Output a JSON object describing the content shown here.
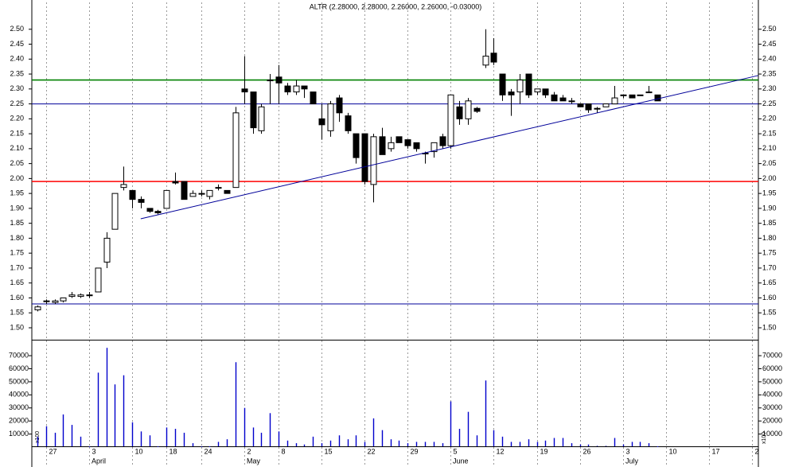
{
  "chart_data": {
    "type": "candlestick",
    "title": "ALTR (2.28000, 2.28000, 2.26000, 2.26000, -0.03000)",
    "categories": [
      null,
      "27",
      null,
      null,
      null,
      null,
      "3",
      null,
      null,
      null,
      null,
      "10",
      null,
      null,
      null,
      "18",
      null,
      null,
      null,
      "24",
      null,
      null,
      null,
      null,
      "2",
      null,
      null,
      null,
      "8",
      null,
      null,
      null,
      null,
      "15",
      null,
      null,
      null,
      null,
      "22",
      null,
      null,
      null,
      null,
      "29",
      null,
      null,
      null,
      null,
      "5",
      null,
      null,
      null,
      null,
      "12",
      null,
      null,
      null,
      null,
      "19",
      null,
      null,
      null,
      null,
      "26",
      null,
      null,
      null,
      null,
      "3",
      null,
      null,
      null,
      null,
      "10",
      null,
      null,
      null,
      null,
      "17",
      null,
      null,
      null,
      null,
      "2"
    ],
    "months": [
      null,
      null,
      null,
      null,
      null,
      null,
      "April",
      null,
      null,
      null,
      null,
      null,
      null,
      null,
      null,
      null,
      null,
      null,
      null,
      null,
      null,
      null,
      null,
      null,
      "May",
      null,
      null,
      null,
      null,
      null,
      null,
      null,
      null,
      null,
      null,
      null,
      null,
      null,
      null,
      null,
      null,
      null,
      null,
      null,
      null,
      null,
      null,
      null,
      "June",
      null,
      null,
      null,
      null,
      null,
      null,
      null,
      null,
      null,
      null,
      null,
      null,
      null,
      null,
      null,
      null,
      null,
      null,
      null,
      "July",
      null,
      null,
      null,
      null,
      null,
      null,
      null,
      null,
      null,
      null,
      null,
      null,
      null,
      null,
      null
    ],
    "open": [
      1.56,
      1.59,
      1.585,
      1.59,
      1.605,
      1.605,
      1.61,
      1.62,
      1.72,
      1.83,
      1.97,
      1.96,
      1.93,
      1.9,
      1.89,
      1.9,
      1.99,
      1.99,
      1.94,
      1.95,
      1.94,
      1.97,
      1.96,
      1.97,
      2.3,
      2.29,
      2.16,
      2.33,
      2.34,
      2.31,
      2.29,
      2.31,
      2.29,
      2.2,
      2.16,
      2.27,
      2.21,
      2.15,
      2.15,
      1.98,
      2.14,
      2.1,
      2.14,
      2.13,
      2.12,
      2.085,
      2.09,
      2.14,
      2.11,
      2.24,
      2.2,
      2.235,
      2.38,
      2.42,
      2.35,
      2.29,
      2.29,
      2.35,
      2.29,
      2.3,
      2.28,
      2.27,
      2.26,
      2.25,
      2.25,
      2.235,
      2.24,
      2.25,
      2.28,
      2.28,
      2.28,
      2.29,
      2.28,
      null,
      null,
      null,
      null,
      null,
      null,
      null,
      null,
      null,
      null,
      null
    ],
    "high": [
      1.575,
      1.595,
      1.595,
      1.6,
      1.62,
      1.615,
      1.62,
      1.7,
      1.82,
      1.95,
      2.04,
      1.96,
      1.94,
      1.9,
      1.895,
      1.96,
      2.02,
      1.99,
      1.96,
      1.96,
      1.96,
      1.98,
      1.96,
      2.24,
      2.41,
      2.29,
      2.25,
      2.35,
      2.38,
      2.32,
      2.33,
      2.31,
      2.29,
      2.25,
      2.26,
      2.28,
      2.22,
      2.15,
      2.15,
      2.15,
      2.17,
      2.14,
      2.14,
      2.13,
      2.12,
      2.09,
      2.12,
      2.15,
      2.28,
      2.26,
      2.27,
      2.24,
      2.5,
      2.47,
      2.35,
      2.3,
      2.35,
      2.35,
      2.3,
      2.3,
      2.29,
      2.28,
      2.27,
      2.25,
      2.25,
      2.24,
      2.25,
      2.31,
      2.28,
      2.28,
      2.28,
      2.31,
      2.28,
      null,
      null,
      null,
      null,
      null,
      null,
      null,
      null,
      null,
      null,
      null
    ],
    "low": [
      1.555,
      1.58,
      1.58,
      1.585,
      1.6,
      1.6,
      1.6,
      1.62,
      1.7,
      1.83,
      1.96,
      1.9,
      1.9,
      1.885,
      1.88,
      1.9,
      1.98,
      1.93,
      1.94,
      1.94,
      1.93,
      1.96,
      1.95,
      1.97,
      2.25,
      2.15,
      2.15,
      2.25,
      2.25,
      2.28,
      2.28,
      2.27,
      2.25,
      2.13,
      2.14,
      2.19,
      2.15,
      2.05,
      1.98,
      1.92,
      2.08,
      2.09,
      2.12,
      2.1,
      2.09,
      2.05,
      2.07,
      2.1,
      2.1,
      2.18,
      2.18,
      2.22,
      2.37,
      2.38,
      2.26,
      2.21,
      2.25,
      2.27,
      2.28,
      2.27,
      2.26,
      2.26,
      2.25,
      2.24,
      2.22,
      2.22,
      2.24,
      2.25,
      2.27,
      2.27,
      2.28,
      2.29,
      2.26,
      null,
      null,
      null,
      null,
      null,
      null,
      null,
      null,
      null,
      null,
      null
    ],
    "close": [
      1.57,
      1.59,
      1.59,
      1.6,
      1.61,
      1.61,
      1.61,
      1.7,
      1.8,
      1.95,
      1.98,
      1.93,
      1.92,
      1.89,
      1.885,
      1.96,
      1.985,
      1.93,
      1.95,
      1.95,
      1.96,
      1.97,
      1.95,
      2.22,
      2.29,
      2.17,
      2.24,
      2.33,
      2.32,
      2.29,
      2.31,
      2.3,
      2.25,
      2.18,
      2.25,
      2.22,
      2.16,
      2.07,
      1.99,
      2.14,
      2.08,
      2.12,
      2.12,
      2.11,
      2.1,
      2.085,
      2.12,
      2.11,
      2.28,
      2.2,
      2.26,
      2.225,
      2.41,
      2.39,
      2.28,
      2.28,
      2.33,
      2.28,
      2.3,
      2.28,
      2.26,
      2.26,
      2.26,
      2.24,
      2.23,
      2.235,
      2.25,
      2.27,
      2.28,
      2.27,
      2.28,
      2.29,
      2.26,
      null,
      null,
      null,
      null,
      null,
      null,
      null,
      null,
      null,
      null,
      null
    ],
    "ylim": [
      1.46,
      2.59
    ],
    "yticks": [
      {
        "value": 1.5,
        "label": "1.50"
      },
      1.55,
      {
        "value": 1.6,
        "label": "1.60"
      },
      1.65,
      {
        "value": 1.7,
        "label": "1.70"
      },
      1.75,
      {
        "value": 1.8,
        "label": "1.80"
      },
      1.85,
      {
        "value": 1.9,
        "label": "1.90"
      },
      1.95,
      {
        "value": 2.0,
        "label": "2.00"
      },
      2.05,
      {
        "value": 2.1,
        "label": "2.10"
      },
      2.15,
      {
        "value": 2.2,
        "label": "2.20"
      },
      2.25,
      {
        "value": 2.3,
        "label": "2.30"
      },
      2.35,
      {
        "value": 2.4,
        "label": "2.40"
      },
      2.45,
      {
        "value": 2.5,
        "label": "2.50"
      }
    ],
    "volume": {
      "color": "#0000cc",
      "values": [
        8000,
        16000,
        11000,
        25000,
        17000,
        8000,
        0,
        57000,
        76000,
        48000,
        55000,
        19000,
        12000,
        9000,
        0,
        15000,
        14000,
        11000,
        3000,
        0,
        0,
        4000,
        6000,
        65000,
        30000,
        15000,
        11000,
        26000,
        12000,
        5000,
        3000,
        2000,
        8000,
        3000,
        5000,
        9000,
        6000,
        9000,
        4000,
        22000,
        13000,
        6000,
        5000,
        3000,
        4000,
        4000,
        4000,
        3000,
        35000,
        14000,
        27000,
        9000,
        51000,
        13000,
        8000,
        4000,
        4000,
        6000,
        4000,
        5000,
        7000,
        7000,
        3000,
        2000,
        2000,
        1000,
        1000,
        7000,
        2000,
        4000,
        4000,
        3000,
        0,
        null,
        null,
        null,
        null,
        null,
        null,
        null,
        null,
        null,
        null,
        null
      ],
      "ylim": [
        0,
        81000
      ],
      "yticks": [
        10000,
        20000,
        30000,
        40000,
        50000,
        60000,
        70000
      ],
      "unit_label": "x100"
    },
    "hlines": [
      {
        "value": 2.33,
        "color": "#008000"
      },
      {
        "value": 2.25,
        "color": "#000099"
      },
      {
        "value": 1.99,
        "color": "#ff0000"
      },
      {
        "value": 1.58,
        "color": "#000099"
      }
    ],
    "trendline": {
      "x": [
        12,
        83.7
      ],
      "y": [
        1.865,
        2.345
      ],
      "color": "#000099"
    },
    "grid": "x"
  }
}
